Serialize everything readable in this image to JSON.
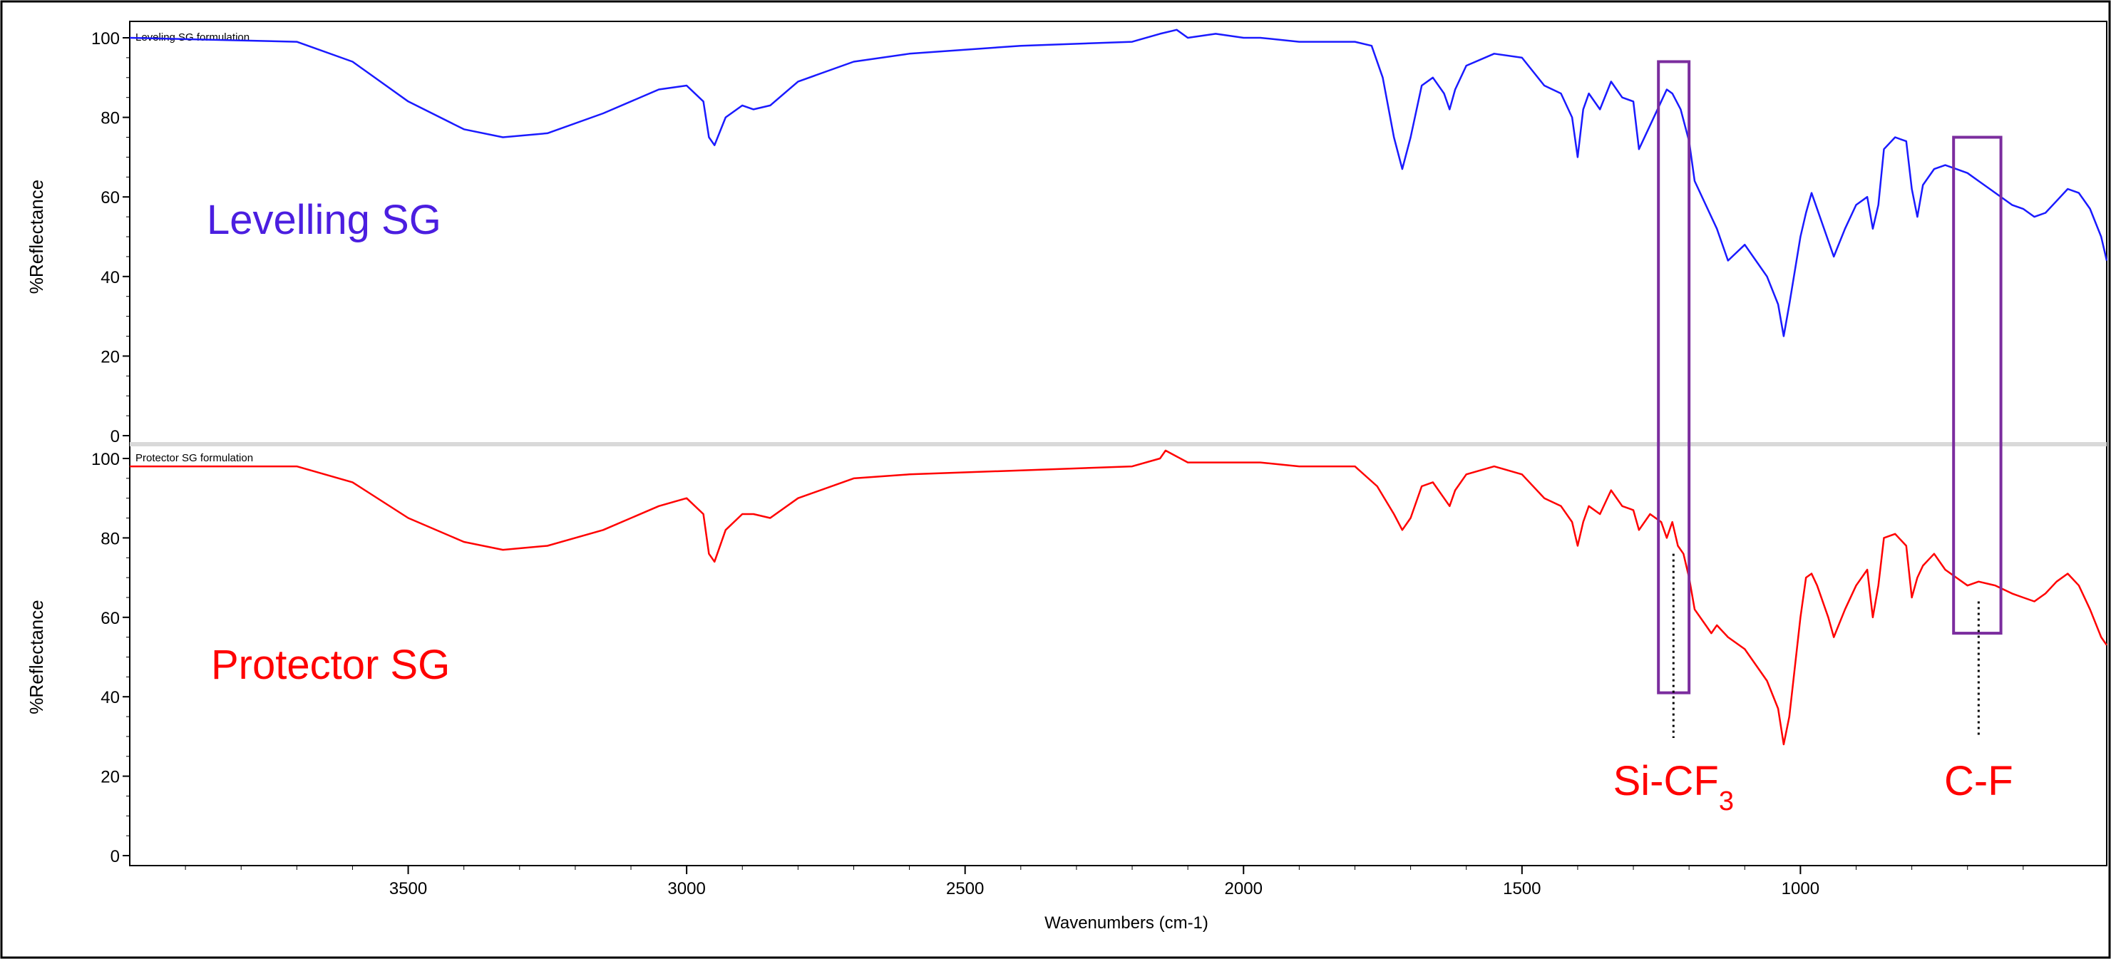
{
  "chart_data": {
    "type": "line",
    "xlabel": "Wavenumbers (cm-1)",
    "xlim": [
      4000,
      450
    ],
    "x_ticks": [
      3500,
      3000,
      2500,
      2000,
      1500,
      1000
    ],
    "panels": [
      {
        "id": "top",
        "title": "Leveling SG formulation",
        "ylabel": "%Reflectance",
        "ylim": [
          0,
          100
        ],
        "y_ticks": [
          0,
          20,
          40,
          60,
          80,
          100
        ],
        "sample_label": "Levelling SG",
        "color": "#1a1aff",
        "label_color": "#4b1ee0",
        "series": [
          {
            "name": "Leveling SG formulation",
            "x": [
              4000,
              3700,
              3600,
              3500,
              3400,
              3330,
              3250,
              3150,
              3050,
              3000,
              2970,
              2960,
              2950,
              2930,
              2900,
              2880,
              2850,
              2800,
              2700,
              2600,
              2400,
              2200,
              2150,
              2120,
              2100,
              2050,
              2000,
              1970,
              1900,
              1800,
              1770,
              1750,
              1730,
              1715,
              1700,
              1680,
              1660,
              1640,
              1630,
              1620,
              1600,
              1550,
              1500,
              1460,
              1430,
              1410,
              1400,
              1390,
              1380,
              1360,
              1340,
              1320,
              1300,
              1290,
              1270,
              1250,
              1240,
              1230,
              1215,
              1200,
              1190,
              1170,
              1150,
              1130,
              1100,
              1080,
              1060,
              1040,
              1030,
              1020,
              1000,
              990,
              980,
              970,
              950,
              940,
              920,
              900,
              880,
              870,
              860,
              850,
              830,
              810,
              800,
              790,
              780,
              760,
              740,
              720,
              700,
              680,
              650,
              620,
              600,
              580,
              560,
              540,
              520,
              500,
              480,
              460,
              450
            ],
            "y": [
              100,
              99,
              94,
              84,
              77,
              75,
              76,
              81,
              87,
              88,
              84,
              75,
              73,
              80,
              83,
              82,
              83,
              89,
              94,
              96,
              98,
              99,
              101,
              102,
              100,
              101,
              100,
              100,
              99,
              99,
              98,
              90,
              75,
              67,
              75,
              88,
              90,
              86,
              82,
              87,
              93,
              96,
              95,
              88,
              86,
              80,
              70,
              82,
              86,
              82,
              89,
              85,
              84,
              72,
              78,
              84,
              87,
              86,
              82,
              74,
              64,
              58,
              52,
              44,
              48,
              44,
              40,
              33,
              25,
              33,
              50,
              56,
              61,
              57,
              49,
              45,
              52,
              58,
              60,
              52,
              58,
              72,
              75,
              74,
              62,
              55,
              63,
              67,
              68,
              67,
              66,
              64,
              61,
              58,
              57,
              55,
              56,
              59,
              62,
              61,
              57,
              50,
              44
            ]
          }
        ]
      },
      {
        "id": "bottom",
        "title": "Protector SG formulation",
        "ylabel": "%Reflectance",
        "ylim": [
          0,
          100
        ],
        "y_ticks": [
          0,
          20,
          40,
          60,
          80,
          100
        ],
        "sample_label": "Protector SG",
        "color": "#ff0000",
        "label_color": "#ff0000",
        "series": [
          {
            "name": "Protector SG formulation",
            "x": [
              4000,
              3700,
              3600,
              3500,
              3400,
              3330,
              3250,
              3150,
              3050,
              3000,
              2970,
              2960,
              2950,
              2930,
              2900,
              2880,
              2850,
              2800,
              2700,
              2600,
              2400,
              2200,
              2150,
              2140,
              2100,
              2050,
              2000,
              1970,
              1900,
              1800,
              1760,
              1730,
              1715,
              1700,
              1680,
              1660,
              1640,
              1630,
              1620,
              1600,
              1550,
              1500,
              1460,
              1430,
              1410,
              1400,
              1390,
              1380,
              1360,
              1340,
              1320,
              1300,
              1290,
              1270,
              1250,
              1240,
              1230,
              1220,
              1210,
              1200,
              1190,
              1170,
              1160,
              1150,
              1130,
              1100,
              1080,
              1060,
              1040,
              1030,
              1020,
              1000,
              990,
              980,
              970,
              950,
              940,
              920,
              900,
              880,
              870,
              860,
              850,
              830,
              810,
              800,
              790,
              780,
              760,
              740,
              720,
              700,
              680,
              650,
              620,
              600,
              580,
              560,
              540,
              520,
              500,
              480,
              460,
              450
            ],
            "y": [
              98,
              98,
              94,
              85,
              79,
              77,
              78,
              82,
              88,
              90,
              86,
              76,
              74,
              82,
              86,
              86,
              85,
              90,
              95,
              96,
              97,
              98,
              100,
              102,
              99,
              99,
              99,
              99,
              98,
              98,
              93,
              86,
              82,
              85,
              93,
              94,
              90,
              88,
              92,
              96,
              98,
              96,
              90,
              88,
              84,
              78,
              84,
              88,
              86,
              92,
              88,
              87,
              82,
              86,
              84,
              80,
              84,
              78,
              76,
              70,
              62,
              58,
              56,
              58,
              55,
              52,
              48,
              44,
              37,
              28,
              35,
              60,
              70,
              71,
              68,
              60,
              55,
              62,
              68,
              72,
              60,
              68,
              80,
              81,
              78,
              65,
              70,
              73,
              76,
              72,
              70,
              68,
              69,
              68,
              66,
              65,
              64,
              66,
              69,
              71,
              68,
              62,
              55,
              53
            ]
          }
        ]
      }
    ],
    "annotations": [
      {
        "label_main": "Si-CF",
        "label_sub": "3",
        "x_range": [
          1255,
          1200
        ],
        "y_range_top": [
          94,
          100
        ],
        "y_range_bottom": [
          100,
          41
        ],
        "marker_x": 1228,
        "color": "#ff0000",
        "box_color": "#7b2d9e"
      },
      {
        "label_main": "C-F",
        "label_sub": "",
        "x_range": [
          725,
          640
        ],
        "y_range_top": [
          75,
          100
        ],
        "y_range_bottom": [
          100,
          56
        ],
        "marker_x": 680,
        "color": "#ff0000",
        "box_color": "#7b2d9e"
      }
    ]
  }
}
